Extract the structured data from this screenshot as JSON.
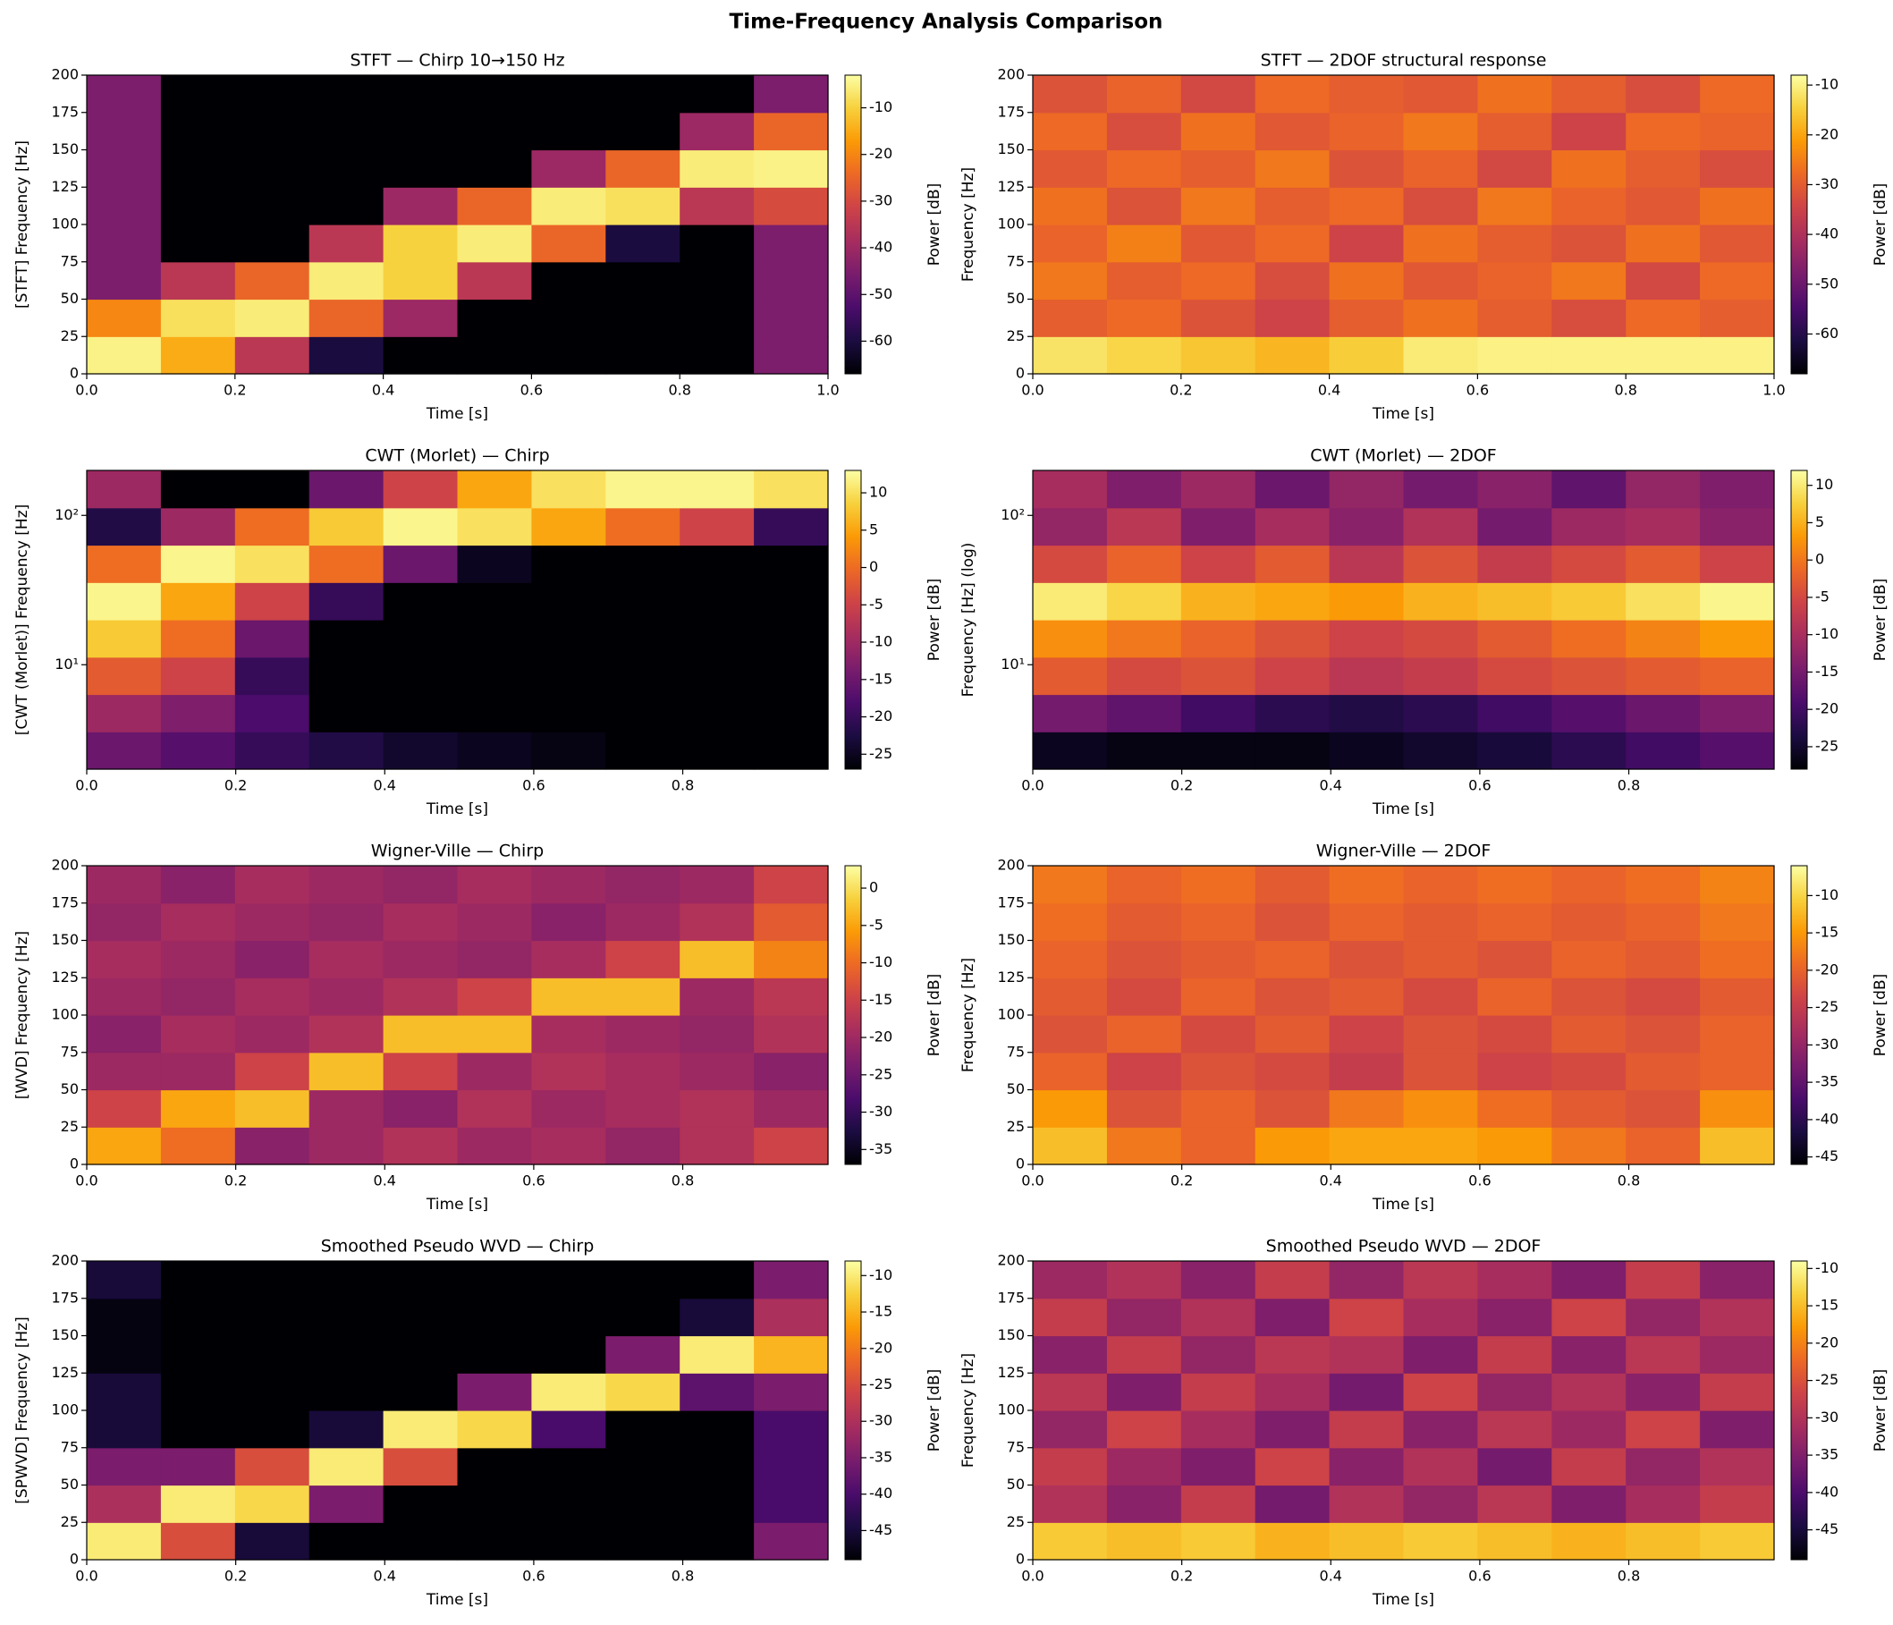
{
  "title": "Time-Frequency Analysis Comparison",
  "chart_data": [
    {
      "type": "heatmap",
      "title": "STFT — Chirp 10→150 Hz",
      "xlabel": "Time [s]",
      "ylabel": "[STFT]  Frequency [Hz]",
      "colorbar_label": "Power [dB]",
      "colormap": "inferno",
      "xlim": [
        0,
        1
      ],
      "xticks": [
        {
          "value": 0,
          "label": "0.0"
        },
        0.2,
        0.4,
        0.6,
        0.8,
        {
          "value": 1,
          "label": "1.0"
        }
      ],
      "ylim": [
        0,
        200
      ],
      "yticks": [
        0,
        25,
        50,
        75,
        100,
        125,
        150,
        175,
        200
      ],
      "clim": [
        -67,
        -3
      ],
      "cticks": [
        -60,
        -50,
        -40,
        -30,
        -20,
        -10
      ],
      "z": [
        [
          -5,
          -15,
          -35,
          -60,
          -67,
          -67,
          -67,
          -67,
          -67,
          -45
        ],
        [
          -20,
          -8,
          -6,
          -25,
          -40,
          -67,
          -67,
          -67,
          -67,
          -45
        ],
        [
          -45,
          -35,
          -25,
          -6,
          -10,
          -35,
          -67,
          -67,
          -67,
          -45
        ],
        [
          -45,
          -67,
          -67,
          -35,
          -10,
          -6,
          -25,
          -60,
          -67,
          -45
        ],
        [
          -45,
          -67,
          -67,
          -67,
          -40,
          -25,
          -6,
          -8,
          -35,
          -30
        ],
        [
          -45,
          -67,
          -67,
          -67,
          -67,
          -67,
          -40,
          -25,
          -6,
          -5
        ],
        [
          -45,
          -67,
          -67,
          -67,
          -67,
          -67,
          -67,
          -67,
          -40,
          -25
        ],
        [
          -45,
          -67,
          -67,
          -67,
          -67,
          -67,
          -67,
          -67,
          -67,
          -45
        ]
      ]
    },
    {
      "type": "heatmap",
      "title": "STFT — 2DOF structural response",
      "xlabel": "Time [s]",
      "ylabel": "Frequency [Hz]",
      "colorbar_label": "Power [dB]",
      "colormap": "inferno",
      "xlim": [
        0,
        1
      ],
      "xticks": [
        {
          "value": 0,
          "label": "0.0"
        },
        0.2,
        0.4,
        0.6,
        0.8,
        {
          "value": 1,
          "label": "1.0"
        }
      ],
      "ylim": [
        0,
        200
      ],
      "yticks": [
        0,
        25,
        50,
        75,
        100,
        125,
        150,
        175,
        200
      ],
      "clim": [
        -68,
        -8
      ],
      "cticks": [
        -60,
        -50,
        -40,
        -30,
        -20,
        -10
      ],
      "z": [
        [
          -12,
          -14,
          -16,
          -18,
          -15,
          -11,
          -10,
          -10,
          -10,
          -10
        ],
        [
          -30,
          -28,
          -32,
          -35,
          -30,
          -27,
          -30,
          -33,
          -28,
          -30
        ],
        [
          -26,
          -30,
          -28,
          -33,
          -27,
          -31,
          -29,
          -26,
          -34,
          -28
        ],
        [
          -29,
          -25,
          -31,
          -28,
          -35,
          -27,
          -30,
          -32,
          -27,
          -31
        ],
        [
          -27,
          -32,
          -26,
          -30,
          -28,
          -33,
          -26,
          -29,
          -31,
          -27
        ],
        [
          -31,
          -28,
          -30,
          -26,
          -32,
          -29,
          -34,
          -27,
          -30,
          -33
        ],
        [
          -28,
          -33,
          -27,
          -31,
          -29,
          -26,
          -30,
          -35,
          -28,
          -29
        ],
        [
          -32,
          -29,
          -34,
          -28,
          -30,
          -31,
          -27,
          -30,
          -33,
          -28
        ]
      ]
    },
    {
      "type": "heatmap",
      "title": "CWT (Morlet) — Chirp",
      "xlabel": "Time [s]",
      "ylabel": "[CWT (Morlet)]  Frequency [Hz]",
      "colorbar_label": "Power [dB]",
      "colormap": "inferno",
      "xlim": [
        0,
        0.995
      ],
      "xticks": [
        {
          "value": 0,
          "label": "0.0"
        },
        0.2,
        0.4,
        0.6,
        0.8
      ],
      "ylim": [
        2,
        200
      ],
      "yscale": "log",
      "yticks": [
        {
          "value": 10,
          "label": "10¹"
        },
        {
          "value": 100,
          "label": "10²"
        }
      ],
      "clim": [
        -27,
        13
      ],
      "cticks": [
        -25,
        -20,
        -15,
        -10,
        -5,
        0,
        5,
        10
      ],
      "z": [
        [
          -15,
          -17,
          -20,
          -22,
          -24,
          -25,
          -26,
          -27,
          -27,
          -27
        ],
        [
          -10,
          -13,
          -18,
          -27,
          -27,
          -27,
          -27,
          -27,
          -27,
          -27
        ],
        [
          -2,
          -5,
          -20,
          -27,
          -27,
          -27,
          -27,
          -27,
          -27,
          -27
        ],
        [
          8,
          0,
          -15,
          -27,
          -27,
          -27,
          -27,
          -27,
          -27,
          -27
        ],
        [
          12,
          5,
          -5,
          -20,
          -27,
          -27,
          -27,
          -27,
          -27,
          -27
        ],
        [
          0,
          12,
          10,
          0,
          -15,
          -25,
          -27,
          -27,
          -27,
          -27
        ],
        [
          -22,
          -10,
          0,
          8,
          12,
          10,
          5,
          0,
          -5,
          -20
        ],
        [
          -10,
          -27,
          -27,
          -15,
          -5,
          5,
          10,
          12,
          12,
          10
        ]
      ]
    },
    {
      "type": "heatmap",
      "title": "CWT (Morlet) — 2DOF",
      "xlabel": "Time [s]",
      "ylabel": "Frequency [Hz] (log)",
      "colorbar_label": "Power [dB]",
      "colormap": "inferno",
      "xlim": [
        0,
        0.995
      ],
      "xticks": [
        {
          "value": 0,
          "label": "0.0"
        },
        0.2,
        0.4,
        0.6,
        0.8
      ],
      "ylim": [
        2,
        200
      ],
      "yscale": "log",
      "yticks": [
        {
          "value": 10,
          "label": "10¹"
        },
        {
          "value": 100,
          "label": "10²"
        }
      ],
      "clim": [
        -28,
        12
      ],
      "cticks": [
        -25,
        -20,
        -15,
        -10,
        -5,
        0,
        5,
        10
      ],
      "z": [
        [
          -26,
          -27,
          -27,
          -27,
          -26,
          -25,
          -24,
          -22,
          -20,
          -18
        ],
        [
          -15,
          -17,
          -20,
          -22,
          -23,
          -22,
          -20,
          -18,
          -16,
          -14
        ],
        [
          -3,
          -5,
          -4,
          -6,
          -8,
          -7,
          -5,
          -4,
          -3,
          -2
        ],
        [
          2,
          0,
          -2,
          -4,
          -6,
          -5,
          -3,
          -1,
          1,
          3
        ],
        [
          10,
          8,
          5,
          4,
          3,
          5,
          6,
          7,
          9,
          11
        ],
        [
          -5,
          -2,
          -6,
          -3,
          -8,
          -4,
          -7,
          -5,
          -3,
          -6
        ],
        [
          -12,
          -8,
          -14,
          -10,
          -13,
          -9,
          -15,
          -11,
          -10,
          -13
        ],
        [
          -10,
          -14,
          -11,
          -16,
          -12,
          -15,
          -13,
          -17,
          -12,
          -14
        ]
      ]
    },
    {
      "type": "heatmap",
      "title": "Wigner-Ville — Chirp",
      "xlabel": "Time [s]",
      "ylabel": "[WVD]  Frequency [Hz]",
      "colorbar_label": "Power [dB]",
      "colormap": "inferno",
      "xlim": [
        0,
        0.995
      ],
      "xticks": [
        {
          "value": 0,
          "label": "0.0"
        },
        0.2,
        0.4,
        0.6,
        0.8
      ],
      "ylim": [
        0,
        200
      ],
      "yticks": [
        0,
        25,
        50,
        75,
        100,
        125,
        150,
        175,
        200
      ],
      "clim": [
        -37,
        3
      ],
      "cticks": [
        -35,
        -30,
        -25,
        -20,
        -15,
        -10,
        -5,
        0
      ],
      "z": [
        [
          -5,
          -10,
          -22,
          -20,
          -18,
          -20,
          -19,
          -21,
          -18,
          -15
        ],
        [
          -15,
          -5,
          -3,
          -20,
          -22,
          -18,
          -20,
          -19,
          -18,
          -20
        ],
        [
          -20,
          -20,
          -15,
          -3,
          -15,
          -20,
          -18,
          -19,
          -20,
          -22
        ],
        [
          -22,
          -19,
          -20,
          -18,
          -3,
          -3,
          -19,
          -20,
          -21,
          -18
        ],
        [
          -20,
          -21,
          -19,
          -20,
          -18,
          -15,
          -3,
          -3,
          -20,
          -17
        ],
        [
          -19,
          -20,
          -22,
          -19,
          -20,
          -21,
          -19,
          -15,
          -3,
          -8
        ],
        [
          -21,
          -19,
          -20,
          -21,
          -19,
          -20,
          -22,
          -20,
          -18,
          -12
        ],
        [
          -20,
          -22,
          -19,
          -20,
          -21,
          -19,
          -20,
          -21,
          -20,
          -15
        ]
      ]
    },
    {
      "type": "heatmap",
      "title": "Wigner-Ville — 2DOF",
      "xlabel": "Time [s]",
      "ylabel": "Frequency [Hz]",
      "colorbar_label": "Power [dB]",
      "colormap": "inferno",
      "xlim": [
        0,
        0.995
      ],
      "xticks": [
        {
          "value": 0,
          "label": "0.0"
        },
        0.2,
        0.4,
        0.6,
        0.8
      ],
      "ylim": [
        0,
        200
      ],
      "yticks": [
        0,
        25,
        50,
        75,
        100,
        125,
        150,
        175,
        200
      ],
      "clim": [
        -46,
        -6
      ],
      "cticks": [
        -45,
        -40,
        -35,
        -30,
        -25,
        -20,
        -15,
        -10
      ],
      "z": [
        [
          -12,
          -18,
          -20,
          -15,
          -14,
          -14,
          -15,
          -18,
          -20,
          -12
        ],
        [
          -15,
          -22,
          -20,
          -22,
          -18,
          -16,
          -19,
          -21,
          -22,
          -16
        ],
        [
          -20,
          -24,
          -22,
          -23,
          -25,
          -22,
          -24,
          -23,
          -21,
          -20
        ],
        [
          -22,
          -20,
          -23,
          -21,
          -24,
          -22,
          -23,
          -21,
          -22,
          -20
        ],
        [
          -21,
          -23,
          -20,
          -22,
          -21,
          -23,
          -20,
          -22,
          -23,
          -21
        ],
        [
          -20,
          -22,
          -21,
          -20,
          -22,
          -21,
          -22,
          -20,
          -21,
          -19
        ],
        [
          -19,
          -21,
          -20,
          -22,
          -20,
          -21,
          -20,
          -21,
          -20,
          -18
        ],
        [
          -18,
          -20,
          -19,
          -21,
          -19,
          -20,
          -19,
          -20,
          -19,
          -17
        ]
      ]
    },
    {
      "type": "heatmap",
      "title": "Smoothed Pseudo WVD — Chirp",
      "xlabel": "Time [s]",
      "ylabel": "[SPWVD]  Frequency [Hz]",
      "colorbar_label": "Power [dB]",
      "colormap": "inferno",
      "xlim": [
        0,
        0.995
      ],
      "xticks": [
        {
          "value": 0,
          "label": "0.0"
        },
        0.2,
        0.4,
        0.6,
        0.8
      ],
      "ylim": [
        0,
        200
      ],
      "yticks": [
        0,
        25,
        50,
        75,
        100,
        125,
        150,
        175,
        200
      ],
      "clim": [
        -49,
        -8
      ],
      "cticks": [
        -45,
        -40,
        -35,
        -30,
        -25,
        -20,
        -15,
        -10
      ],
      "z": [
        [
          -10,
          -25,
          -45,
          -49,
          -49,
          -49,
          -49,
          -49,
          -49,
          -35
        ],
        [
          -30,
          -10,
          -12,
          -35,
          -49,
          -49,
          -49,
          -49,
          -49,
          -40
        ],
        [
          -35,
          -35,
          -25,
          -10,
          -25,
          -49,
          -49,
          -49,
          -49,
          -40
        ],
        [
          -45,
          -49,
          -49,
          -45,
          -10,
          -12,
          -40,
          -49,
          -49,
          -40
        ],
        [
          -45,
          -49,
          -49,
          -49,
          -49,
          -35,
          -10,
          -12,
          -38,
          -35
        ],
        [
          -48,
          -49,
          -49,
          -49,
          -49,
          -49,
          -49,
          -35,
          -10,
          -15
        ],
        [
          -48,
          -49,
          -49,
          -49,
          -49,
          -49,
          -49,
          -49,
          -45,
          -30
        ],
        [
          -45,
          -49,
          -49,
          -49,
          -49,
          -49,
          -49,
          -49,
          -49,
          -35
        ]
      ]
    },
    {
      "type": "heatmap",
      "title": "Smoothed Pseudo WVD — 2DOF",
      "xlabel": "Time [s]",
      "ylabel": "Frequency [Hz]",
      "colorbar_label": "Power [dB]",
      "colormap": "inferno",
      "xlim": [
        0,
        0.995
      ],
      "xticks": [
        {
          "value": 0,
          "label": "0.0"
        },
        0.2,
        0.4,
        0.6,
        0.8
      ],
      "ylim": [
        0,
        200
      ],
      "yticks": [
        0,
        25,
        50,
        75,
        100,
        125,
        150,
        175,
        200
      ],
      "clim": [
        -49,
        -9
      ],
      "cticks": [
        -45,
        -40,
        -35,
        -30,
        -25,
        -20,
        -15,
        -10
      ],
      "z": [
        [
          -14,
          -15,
          -14,
          -16,
          -15,
          -14,
          -15,
          -16,
          -15,
          -14
        ],
        [
          -30,
          -34,
          -28,
          -36,
          -30,
          -33,
          -29,
          -35,
          -31,
          -28
        ],
        [
          -28,
          -32,
          -35,
          -27,
          -34,
          -30,
          -36,
          -28,
          -33,
          -30
        ],
        [
          -33,
          -27,
          -31,
          -35,
          -28,
          -34,
          -29,
          -32,
          -27,
          -35
        ],
        [
          -29,
          -35,
          -28,
          -31,
          -36,
          -27,
          -33,
          -30,
          -34,
          -28
        ],
        [
          -34,
          -28,
          -33,
          -29,
          -30,
          -35,
          -28,
          -34,
          -29,
          -32
        ],
        [
          -28,
          -33,
          -30,
          -35,
          -27,
          -31,
          -34,
          -27,
          -33,
          -30
        ],
        [
          -32,
          -30,
          -34,
          -28,
          -33,
          -29,
          -31,
          -35,
          -28,
          -34
        ]
      ]
    }
  ]
}
